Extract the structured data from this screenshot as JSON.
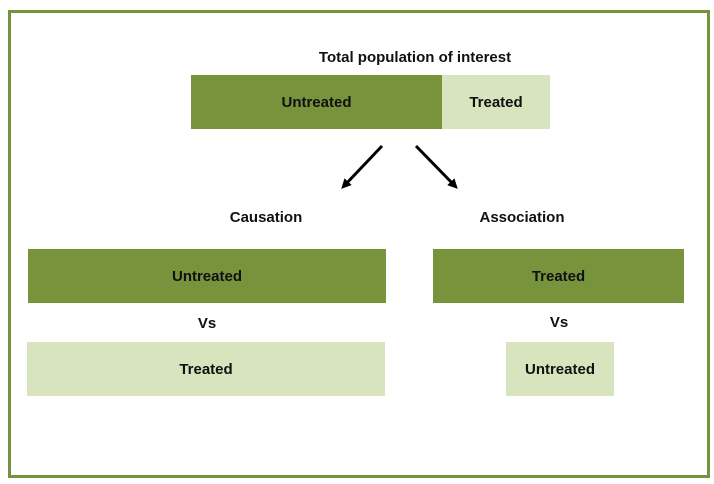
{
  "top": {
    "title": "Total population of interest",
    "untreated_label": "Untreated",
    "treated_label": "Treated"
  },
  "causation": {
    "heading": "Causation",
    "first_label": "Untreated",
    "vs_label": "Vs",
    "second_label": "Treated"
  },
  "association": {
    "heading": "Association",
    "first_label": "Treated",
    "vs_label": "Vs",
    "second_label": "Untreated"
  },
  "colors": {
    "dark_green": "#77933c",
    "light_green": "#d7e4bd",
    "border": "#77933c",
    "arrow": "#000000"
  }
}
